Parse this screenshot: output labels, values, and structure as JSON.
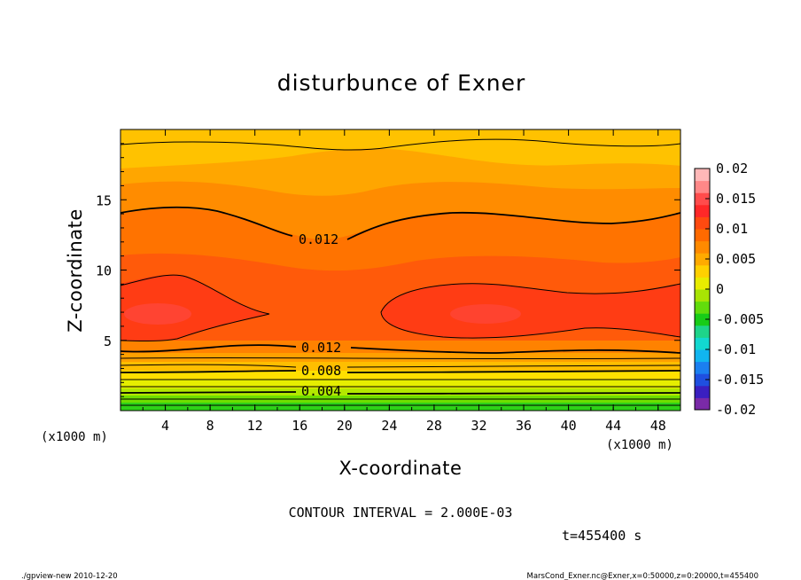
{
  "chart_data": {
    "type": "heatmap",
    "title": "disturbunce of Exner",
    "xlabel": "X-coordinate",
    "ylabel": "Z-coordinate",
    "x_unit": "(x1000 m)",
    "y_unit": "(x1000 m)",
    "xlim": [
      0,
      50
    ],
    "ylim": [
      0,
      20
    ],
    "x_ticks": [
      "4",
      "8",
      "12",
      "16",
      "20",
      "24",
      "28",
      "32",
      "36",
      "40",
      "44",
      "48"
    ],
    "y_ticks": [
      "5",
      "10",
      "15"
    ],
    "colorbar": {
      "labels": [
        "0.02",
        "0.015",
        "0.01",
        "0.005",
        "0",
        "-0.005",
        "-0.01",
        "-0.015",
        "-0.02"
      ],
      "range": [
        -0.02,
        0.02
      ],
      "colors": [
        "#7a2aa8",
        "#3a1fc0",
        "#1f4fe0",
        "#1b7ff0",
        "#11b5f0",
        "#12d8d0",
        "#1ed48a",
        "#18cc18",
        "#62dc0c",
        "#a8e404",
        "#e8ec00",
        "#ffd000",
        "#ffaa00",
        "#ff8a00",
        "#ff6a00",
        "#ff4a10",
        "#ff2828",
        "#ff4c4c",
        "#ff8888",
        "#ffb8b8"
      ]
    },
    "contour_labels": [
      "0.012",
      "0.012",
      "0.008",
      "0.004"
    ],
    "contour_interval": "CONTOUR INTERVAL = 2.000E-03",
    "time_label": "t=455400 s"
  },
  "footer": {
    "left": "./gpview-new   2010-12-20",
    "right": "MarsCond_Exner.nc@Exner,x=0:50000,z=0:20000,t=455400"
  },
  "colors": {
    "band_top": "#ffb400",
    "band_mid": "#ff8a00",
    "band_strong": "#ff6a00",
    "core": "#ff3c14",
    "peak": "#ff5050"
  }
}
